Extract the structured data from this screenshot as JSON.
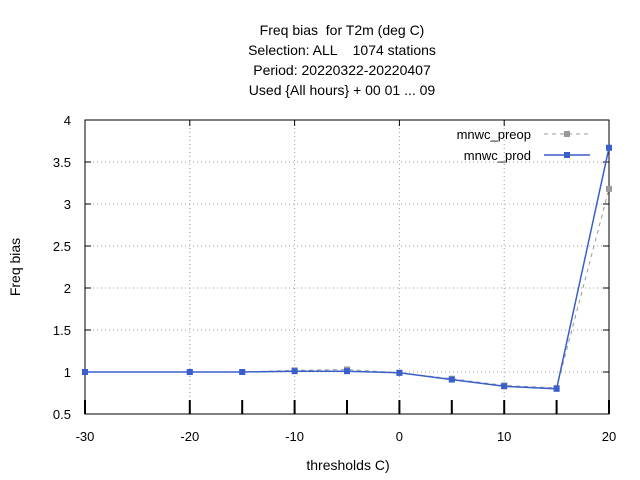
{
  "chart_data": {
    "type": "line",
    "title": [
      "Freq bias  for T2m (deg C)",
      "Selection: ALL    1074 stations",
      "Period: 20220322-20220407",
      "Used {All hours} + 00 01 ... 09"
    ],
    "xlabel": "thresholds C)",
    "ylabel": "Freq bias",
    "xlim": [
      -30,
      20
    ],
    "ylim": [
      0.5,
      4
    ],
    "x_ticks": [
      "-30",
      "-20",
      "-10",
      "0",
      "10",
      "20"
    ],
    "y_ticks": [
      "0.5",
      "1",
      "1.5",
      "2",
      "2.5",
      "3",
      "3.5",
      "4"
    ],
    "grid": true,
    "legend_position": "top-right",
    "series": [
      {
        "name": "mnwc_preop",
        "color": "#999999",
        "style": "dashed",
        "x": [
          -30,
          -20,
          -15,
          -10,
          -5,
          0,
          5,
          10,
          15,
          20
        ],
        "y": [
          1.0,
          1.0,
          1.0,
          1.02,
          1.03,
          0.99,
          0.92,
          0.84,
          0.81,
          3.18
        ]
      },
      {
        "name": "mnwc_prod",
        "color": "#3a5fcd",
        "style": "solid",
        "x": [
          -30,
          -20,
          -15,
          -10,
          -5,
          0,
          5,
          10,
          15,
          20
        ],
        "y": [
          1.0,
          1.0,
          1.0,
          1.01,
          1.01,
          0.99,
          0.91,
          0.83,
          0.8,
          3.67
        ]
      }
    ]
  }
}
